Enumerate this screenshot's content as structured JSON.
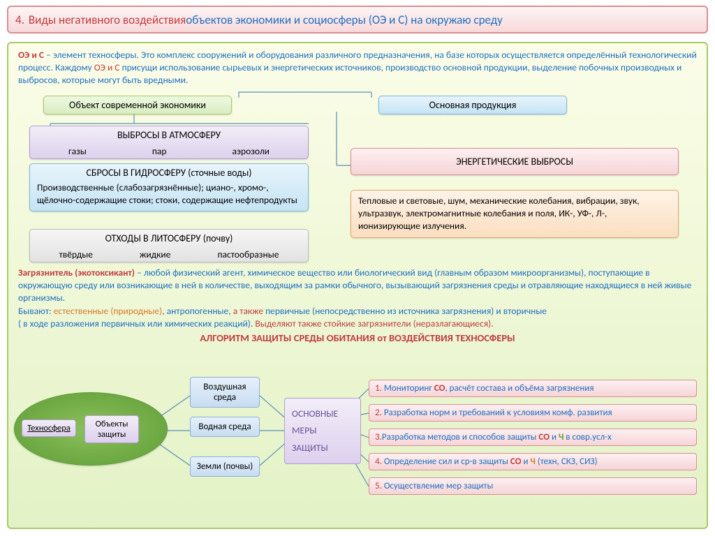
{
  "colors": {
    "title_border": "#d98e93",
    "panel_border": "#a8c86a",
    "text_blue": "#1f6fc2",
    "text_red": "#c13b3f",
    "text_orange": "#d87a2a",
    "text_green": "#5f9c38",
    "text_purple": "#6b4f99"
  },
  "title": {
    "num": "4.",
    "red_part": "Виды негативного воздействия",
    "rest": " объектов экономики и социосферы (ОЭ и С) на окружаю среду"
  },
  "intro": {
    "key": "ОЭ и С",
    "l1": " – элемент техносферы. Это комплекс сооружений и оборудования различного предназначения, на базе которых осуществляется определённый технологический процесс. Каждому ",
    "key2": "ОЭ и С",
    "l2": " присущи использование сырьевых и энергетических источников, производство основной продукции, выделение побочных производных и выбросов, которые могут быть вредными."
  },
  "boxes": {
    "econ": "Объект современной экономики",
    "prod": "Основная продукция",
    "atm_title": "ВЫБРОСЫ В АТМОСФЕРУ",
    "atm_items": [
      "газы",
      "пар",
      "аэрозоли"
    ],
    "hydro_title": "СБРОСЫ В ГИДРОСФЕРУ (сточные воды)",
    "hydro_body": "Производственные (слабозагрязнённые); циано-, хромо-, щёлочно-содержащие стоки; стоки, содержащие нефтепродукты",
    "lito_title": "ОТХОДЫ В ЛИТОСФЕРУ (почву)",
    "lito_items": [
      "твёрдые",
      "жидкие",
      "пастообразные"
    ],
    "energy_title": "ЭНЕРГЕТИЧЕСКИЕ ВЫБРОСЫ",
    "energy_body": "Тепловые и световые, шум, механические колебания, вибрации, звук, ультразвук, электромагнитные колебания и поля, ИК-, УФ-, Л-, ионизирующие излучения."
  },
  "mid": {
    "term": "Загрязнитель (экотоксикант)",
    "l1": " – любой физический агент, химическое вещество или биологический вид (главным образом микроорганизмы), поступающие в окружающую среду или возникающие в ней в количестве, выходящим за рамки обычного, вызывающий загрязнения среды и отравляющие находящиеся в ней живые организмы.",
    "l2a": "Бывают: ",
    "nat": "естественные (природные)",
    "l2b": ", антропогенные, ",
    "also": "а также ",
    "prim": "первичные",
    "l2c": " (непосредственно из источника загрязнения) и ",
    "sec": "вторичные",
    "l3": "( в ходе разложения первичных или химических реакций). ",
    "l3b": "Выделяют также стойкие загрязнители (неразлагающиеся)."
  },
  "algo_title": "АЛГОРИТМ ЗАЩИТЫ СРЕДЫ ОБИТАНИЯ от ВОЗДЕЙСТВИЯ ТЕХНОСФЕРЫ",
  "ellipse": {
    "techno": "Техносфера",
    "objects": "Объекты защиты"
  },
  "envs": [
    "Воздушная среда",
    "Водная среда",
    "Земли (почвы)"
  ],
  "measures_label": [
    "ОСНОВНЫЕ",
    "МЕРЫ",
    "ЗАЩИТЫ"
  ],
  "steps": [
    {
      "n": "1.",
      "parts": [
        {
          "t": " Мониторинг "
        },
        {
          "t": "СО",
          "c": "r"
        },
        {
          "t": ", расчёт состава и объёма загрязнения"
        }
      ]
    },
    {
      "n": "2.",
      "parts": [
        {
          "t": " Разработка норм и требований к условиям комф. развития"
        }
      ]
    },
    {
      "n": "3.",
      "parts": [
        {
          "t": "Разработка методов и способов защиты "
        },
        {
          "t": "СО",
          "c": "r"
        },
        {
          "t": " и "
        },
        {
          "t": "Ч",
          "c": "g"
        },
        {
          "t": " в совр.усл-х"
        }
      ]
    },
    {
      "n": "4.",
      "parts": [
        {
          "t": " Определение сил и ср-в защиты "
        },
        {
          "t": "СО",
          "c": "r"
        },
        {
          "t": " и "
        },
        {
          "t": "Ч",
          "c": "o"
        },
        {
          "t": " (техн, СКЗ, СИЗ)"
        }
      ]
    },
    {
      "n": "5.",
      "parts": [
        {
          "t": " Осуществление мер защиты"
        }
      ]
    }
  ],
  "layout": {
    "title_fontsize": 17,
    "body_fontsize": 13.5,
    "step_height": 26,
    "step_gap": 35
  }
}
